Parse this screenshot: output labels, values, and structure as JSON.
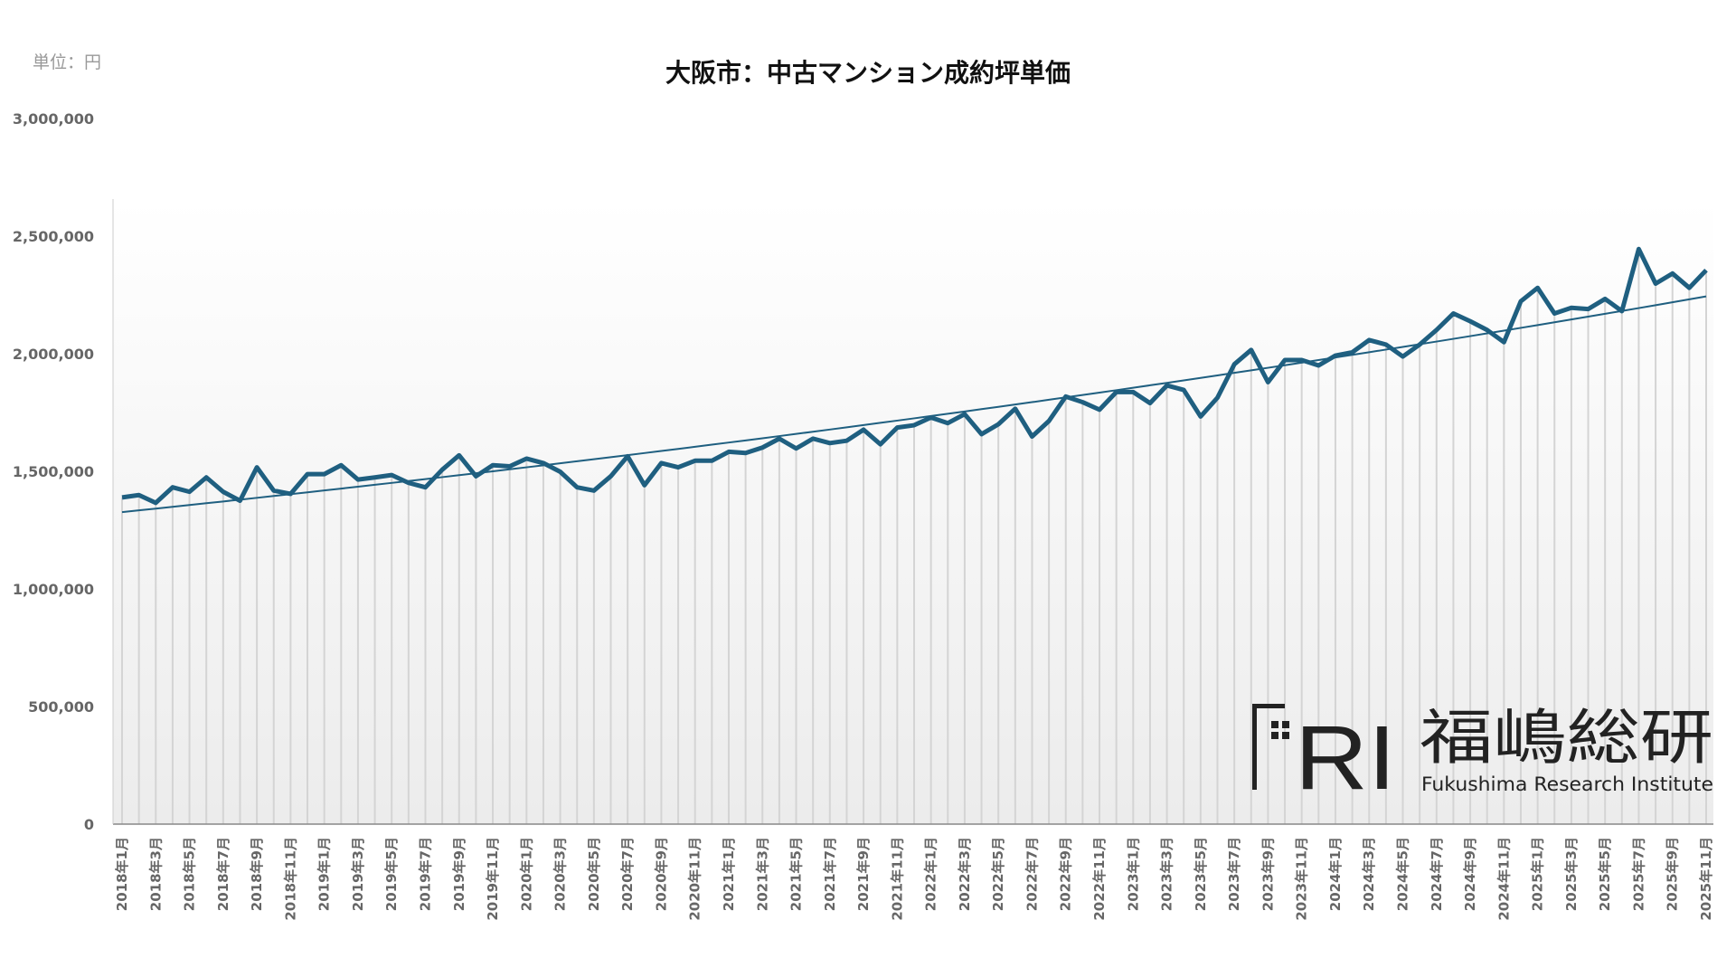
{
  "chart_data": {
    "type": "line",
    "title": "大阪市：中古マンション成約坪単価",
    "unit_label": "単位：円",
    "ylim": [
      0,
      3000000
    ],
    "y_ticks": [
      "0",
      "500,000",
      "1,000,000",
      "1,500,000",
      "2,000,000",
      "2,500,000",
      "3,000,000"
    ],
    "y_tick_values": [
      0,
      500000,
      1000000,
      1500000,
      2000000,
      2500000,
      3000000
    ],
    "trendline": true,
    "drop_lines": true,
    "line_color": "#1f5f80",
    "x": [
      "2018年1月",
      "2018年2月",
      "2018年3月",
      "2018年4月",
      "2018年5月",
      "2018年6月",
      "2018年7月",
      "2018年8月",
      "2018年9月",
      "2018年10月",
      "2018年11月",
      "2018年12月",
      "2019年1月",
      "2019年2月",
      "2019年3月",
      "2019年4月",
      "2019年5月",
      "2019年6月",
      "2019年7月",
      "2019年8月",
      "2019年9月",
      "2019年10月",
      "2019年11月",
      "2019年12月",
      "2020年1月",
      "2020年2月",
      "2020年3月",
      "2020年4月",
      "2020年5月",
      "2020年6月",
      "2020年7月",
      "2020年8月",
      "2020年9月",
      "2020年10月",
      "2020年11月",
      "2020年12月",
      "2021年1月",
      "2021年2月",
      "2021年3月",
      "2021年4月",
      "2021年5月",
      "2021年6月",
      "2021年7月",
      "2021年8月",
      "2021年9月",
      "2021年10月",
      "2021年11月",
      "2021年12月",
      "2022年1月",
      "2022年2月",
      "2022年3月",
      "2022年4月",
      "2022年5月",
      "2022年6月",
      "2022年7月",
      "2022年8月",
      "2022年9月",
      "2022年10月",
      "2022年11月",
      "2022年12月",
      "2023年1月",
      "2023年2月",
      "2023年3月",
      "2023年4月",
      "2023年5月",
      "2023年6月",
      "2023年7月",
      "2023年8月",
      "2023年9月",
      "2023年10月",
      "2023年11月",
      "2023年12月",
      "2024年1月",
      "2024年2月",
      "2024年3月",
      "2024年4月",
      "2024年5月",
      "2024年6月",
      "2024年7月",
      "2024年8月",
      "2024年9月",
      "2024年10月",
      "2024年11月",
      "2024年12月",
      "2025年1月",
      "2025年2月",
      "2025年3月",
      "2025年4月",
      "2025年5月",
      "2025年6月",
      "2025年7月",
      "2025年8月",
      "2025年9月",
      "2025年10月",
      "2025年11月"
    ],
    "values": [
      1389000,
      1399000,
      1366000,
      1432000,
      1413000,
      1474000,
      1413000,
      1375000,
      1517000,
      1418000,
      1404000,
      1488000,
      1488000,
      1526000,
      1465000,
      1474000,
      1484000,
      1451000,
      1432000,
      1507000,
      1568000,
      1479000,
      1526000,
      1521000,
      1554000,
      1535000,
      1498000,
      1432000,
      1418000,
      1479000,
      1564000,
      1441000,
      1535000,
      1517000,
      1545000,
      1545000,
      1583000,
      1578000,
      1601000,
      1639000,
      1597000,
      1639000,
      1620000,
      1630000,
      1677000,
      1615000,
      1686000,
      1696000,
      1729000,
      1705000,
      1743000,
      1658000,
      1700000,
      1766000,
      1648000,
      1714000,
      1818000,
      1794000,
      1762000,
      1837000,
      1837000,
      1790000,
      1865000,
      1846000,
      1733000,
      1813000,
      1955000,
      2016000,
      1879000,
      1973000,
      1973000,
      1950000,
      1992000,
      2006000,
      2058000,
      2039000,
      1988000,
      2039000,
      2101000,
      2171000,
      2138000,
      2101000,
      2049000,
      2223000,
      2280000,
      2171000,
      2195000,
      2190000,
      2233000,
      2181000,
      2445000,
      2298000,
      2341000,
      2280000,
      2355000
    ]
  },
  "logo": {
    "mark": "FRI",
    "name_jp": "福嶋総研",
    "name_en": "Fukushima Research Institute"
  }
}
